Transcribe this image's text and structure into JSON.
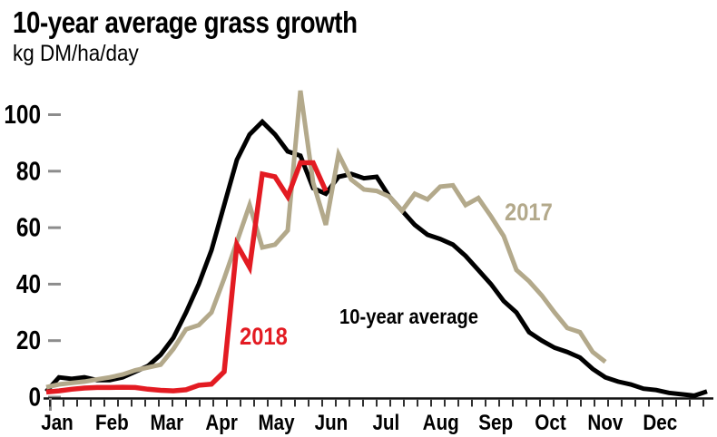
{
  "title": "10-year average grass growth",
  "subtitle_unit": "kg DM/ha/day",
  "axis": {
    "tick_color": "#1a1a1a",
    "dash_color": "#8c8c8c",
    "months": [
      "Jan",
      "Feb",
      "Mar",
      "Apr",
      "May",
      "Jun",
      "Jul",
      "Aug",
      "Sep",
      "Oct",
      "Nov",
      "Dec"
    ],
    "yticks": [
      0,
      20,
      40,
      60,
      80,
      100
    ]
  },
  "chart_data": {
    "type": "line",
    "title": "10-year average grass growth",
    "ylabel": "kg DM/ha/day",
    "x_unit": "weekly points, Jan through Dec",
    "categories": [
      "Jan",
      "Feb",
      "Mar",
      "Apr",
      "May",
      "Jun",
      "Jul",
      "Aug",
      "Sep",
      "Oct",
      "Nov",
      "Dec"
    ],
    "ylim": [
      0,
      112
    ],
    "grid": false,
    "legend_position": "labels beside lines",
    "series": [
      {
        "name": "10-year average",
        "color": "#000000",
        "values": [
          2,
          7,
          6.5,
          7,
          6,
          6,
          7,
          9,
          11,
          15,
          21,
          30,
          40,
          52,
          68,
          84,
          93,
          97.5,
          93,
          87,
          85.5,
          74,
          72,
          78,
          79,
          77.5,
          78,
          71,
          66,
          61,
          57.5,
          56,
          54,
          50,
          45,
          40,
          34,
          30,
          23,
          20,
          17.5,
          16,
          14,
          10,
          7,
          5.5,
          4.5,
          3,
          2.5,
          1.5,
          1,
          0.5,
          2
        ]
      },
      {
        "name": "2017",
        "color": "#b3a98b",
        "values": [
          3.5,
          4.5,
          5,
          5.5,
          6.3,
          7,
          8,
          9.5,
          10.5,
          11.5,
          17,
          24,
          25.5,
          30,
          42,
          55,
          68,
          53,
          54,
          59,
          108.5,
          76,
          61,
          86,
          77,
          73.5,
          73,
          71,
          66,
          72,
          70,
          74.5,
          75,
          68,
          70.5,
          64,
          57,
          45,
          41,
          36,
          30,
          24.5,
          23,
          16,
          12.5
        ]
      },
      {
        "name": "2018",
        "color": "#e31b22",
        "values": [
          1.8,
          2.2,
          2.8,
          3.2,
          3.4,
          3.4,
          3.5,
          3.4,
          2.8,
          2.4,
          2.2,
          2.6,
          4.2,
          4.6,
          9,
          54,
          46,
          79,
          78,
          71,
          83,
          83,
          73
        ]
      }
    ]
  }
}
